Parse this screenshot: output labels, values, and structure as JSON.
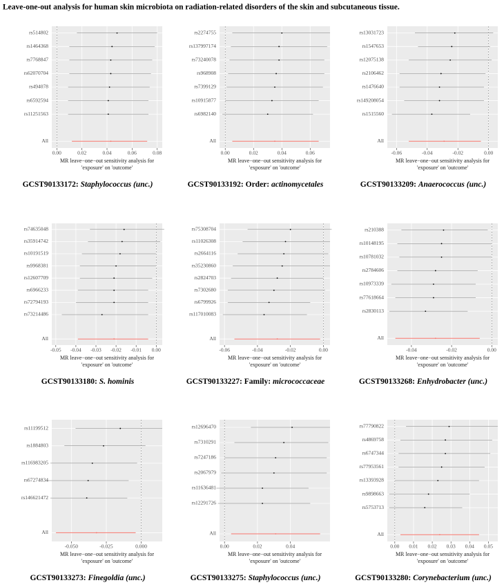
{
  "title": "Leave-one-out analysis for human skin microbiota on radiation-related disorders of the skin and subcutaneous tissue.",
  "chart_data": [
    {
      "type": "forest",
      "caption_id": "GCST90133172: ",
      "caption_taxon": "Staphylococcus (unc.)",
      "xlabel": [
        "MR leave−one−out sensitivity analysis for",
        "'exposure' on 'outcome'"
      ],
      "categories": [
        "rs514802",
        "rs1464368",
        "rs7768847",
        "rs62070704",
        "rs494078",
        "rs6592594",
        "rs11251563",
        "All"
      ],
      "values": [
        0.048,
        0.044,
        0.043,
        0.043,
        0.042,
        0.041,
        0.041,
        0.043
      ],
      "lower": [
        0.016,
        0.01,
        0.01,
        0.01,
        0.009,
        0.009,
        0.009,
        0.012
      ],
      "upper": [
        0.08,
        0.078,
        0.076,
        0.075,
        0.074,
        0.073,
        0.073,
        0.072
      ],
      "xlim": [
        -0.004,
        0.084
      ],
      "xticks": [
        {
          "value": 0,
          "label": "0.00"
        },
        0.02,
        0.04,
        0.06,
        0.08
      ],
      "color": "#000000",
      "summary_color": "#f8766d",
      "grid": true
    },
    {
      "type": "forest",
      "caption_id": "GCST90133192: Order: ",
      "caption_taxon": "actinomycetales",
      "xlabel": [
        "MR leave−one−out sensitivity analysis for",
        "'exposure' on 'outcome'"
      ],
      "categories": [
        "rs2274755",
        "rs137997174",
        "rs73240078",
        "rs968908",
        "rs7399129",
        "rs10915877",
        "rs6982140",
        "All"
      ],
      "values": [
        0.04,
        0.038,
        0.038,
        0.036,
        0.035,
        0.033,
        0.03,
        0.035
      ],
      "lower": [
        0.005,
        0.004,
        0.003,
        0.002,
        0.001,
        0.0,
        -0.002,
        0.005
      ],
      "upper": [
        0.074,
        0.072,
        0.07,
        0.07,
        0.069,
        0.066,
        0.062,
        0.066
      ],
      "xlim": [
        -0.004,
        0.074
      ],
      "xticks": [
        {
          "value": 0,
          "label": "0.00"
        },
        0.02,
        0.04,
        0.06
      ],
      "color": "#000000",
      "summary_color": "#f8766d",
      "grid": true
    },
    {
      "type": "forest",
      "caption_id": "GCST90133209: ",
      "caption_taxon": "Anaerococcus (unc.)",
      "xlabel": [
        "MR leave−one−out sensitivity analysis for",
        "'exposure' on 'outcome'"
      ],
      "categories": [
        "rs13031723",
        "rs1547653",
        "rs12075138",
        "rs2106462",
        "rs1476640",
        "rs149208054",
        "rs1515560",
        "All"
      ],
      "values": [
        -0.022,
        -0.024,
        -0.025,
        -0.031,
        -0.032,
        -0.032,
        -0.037,
        -0.029
      ],
      "lower": [
        -0.048,
        -0.046,
        -0.052,
        -0.058,
        -0.058,
        -0.055,
        -0.063,
        -0.052
      ],
      "upper": [
        0.003,
        0.001,
        0.002,
        -0.002,
        -0.003,
        -0.003,
        -0.012,
        -0.005
      ],
      "xlim": [
        -0.066,
        0.006
      ],
      "xticks": [
        -0.06,
        -0.04,
        -0.02,
        {
          "value": 0,
          "label": "0.00"
        }
      ],
      "color": "#000000",
      "summary_color": "#f8766d",
      "grid": true
    },
    {
      "type": "forest",
      "caption_id": "GCST90133180: ",
      "caption_taxon": "S. hominis",
      "xlabel": [
        "MR leave−one−out sensitivity analysis for",
        "'exposure' on 'outcome'"
      ],
      "categories": [
        "rs74635048",
        "rs35914742",
        "rs10191519",
        "rs9968381",
        "rs12607709",
        "rs6966233",
        "rs72794193",
        "rs73214486",
        "All"
      ],
      "values": [
        -0.016,
        -0.017,
        -0.018,
        -0.02,
        -0.021,
        -0.021,
        -0.021,
        -0.027,
        -0.021
      ],
      "lower": [
        -0.033,
        -0.034,
        -0.037,
        -0.038,
        -0.038,
        -0.039,
        -0.04,
        -0.047,
        -0.039
      ],
      "upper": [
        0.004,
        0.002,
        0.0,
        0.0,
        -0.002,
        -0.004,
        -0.004,
        -0.004,
        -0.004
      ],
      "xlim": [
        -0.052,
        0.003
      ],
      "xticks": [
        -0.05,
        -0.04,
        -0.03,
        -0.02,
        -0.01,
        {
          "value": 0,
          "label": "0.00"
        }
      ],
      "color": "#000000",
      "summary_color": "#f8766d",
      "grid": true
    },
    {
      "type": "forest",
      "caption_id": "GCST90133227: Family: ",
      "caption_taxon": "micrococcaceae",
      "xlabel": [
        "MR leave−one−out sensitivity analysis for",
        "'exposure' on 'outcome'"
      ],
      "categories": [
        "rs75308704",
        "rs11026308",
        "rs2664116",
        "rs35230860",
        "rs2824703",
        "rs7302680",
        "rs6799926",
        "rs117010083",
        "All"
      ],
      "values": [
        -0.02,
        -0.023,
        -0.024,
        -0.025,
        -0.028,
        -0.03,
        -0.033,
        -0.036,
        -0.028
      ],
      "lower": [
        -0.046,
        -0.049,
        -0.052,
        -0.055,
        -0.056,
        -0.058,
        -0.058,
        -0.061,
        -0.054
      ],
      "upper": [
        0.005,
        0.004,
        0.003,
        0.004,
        0.0,
        0.001,
        -0.008,
        -0.01,
        -0.002
      ],
      "xlim": [
        -0.063,
        0.004
      ],
      "xticks": [
        -0.06,
        -0.04,
        -0.02,
        {
          "value": 0,
          "label": "0.00"
        }
      ],
      "color": "#000000",
      "summary_color": "#f8766d",
      "grid": true
    },
    {
      "type": "forest",
      "caption_id": "GCST90133268: ",
      "caption_taxon": "Enhydrobacter (unc.)",
      "xlabel": [
        "MR leave−one−out sensitivity analysis for",
        "'exposure' on 'outcome'"
      ],
      "categories": [
        "rs210388",
        "rs10148195",
        "rs10781032",
        "rs2784606",
        "rs10973339",
        "rs77618664",
        "rs2830113",
        "All"
      ],
      "values": [
        -0.024,
        -0.025,
        -0.025,
        -0.028,
        -0.029,
        -0.029,
        -0.033,
        -0.028
      ],
      "lower": [
        -0.045,
        -0.047,
        -0.046,
        -0.047,
        -0.05,
        -0.048,
        -0.051,
        -0.048
      ],
      "upper": [
        -0.002,
        0.0,
        0.0,
        -0.007,
        -0.008,
        -0.008,
        -0.012,
        -0.006
      ],
      "xlim": [
        -0.052,
        0.003
      ],
      "xticks": [
        -0.04,
        -0.02,
        {
          "value": 0,
          "label": "0.00"
        }
      ],
      "color": "#000000",
      "summary_color": "#f8766d",
      "grid": true
    },
    {
      "type": "forest",
      "caption_id": "GCST90133273: ",
      "caption_taxon": "Finegoldia (unc.)",
      "xlabel": [
        "MR leave−one−out sensitivity analysis for",
        "'exposure' on 'outcome'"
      ],
      "categories": [
        "rs11199512",
        "rs1884803",
        "rs116983205",
        "rs67274834",
        "rs146621472",
        "All"
      ],
      "values": [
        -0.015,
        -0.027,
        -0.035,
        -0.038,
        -0.039,
        -0.032
      ],
      "lower": [
        -0.047,
        -0.055,
        -0.065,
        -0.068,
        -0.065,
        -0.061
      ],
      "upper": [
        0.015,
        0.003,
        -0.003,
        -0.009,
        -0.01,
        -0.004
      ],
      "xlim": [
        -0.064,
        0.015
      ],
      "xticks": [
        {
          "value": -0.05,
          "label": "-0.050"
        },
        {
          "value": -0.025,
          "label": "-0.025"
        },
        {
          "value": 0,
          "label": "0.000"
        }
      ],
      "color": "#000000",
      "summary_color": "#f8766d",
      "grid": true
    },
    {
      "type": "forest",
      "caption_id": "GCST90133275: ",
      "caption_taxon": "Staphylococcus (unc.)",
      "xlabel": [
        "MR leave−one−out sensitivity analysis for",
        "'exposure' on 'outcome'"
      ],
      "categories": [
        "rs12696470",
        "rs7310291",
        "rs7247186",
        "rs2067979",
        "rs11636481",
        "rs12291726",
        "All"
      ],
      "values": [
        0.041,
        0.036,
        0.031,
        0.03,
        0.023,
        0.023,
        0.031
      ],
      "lower": [
        0.016,
        0.006,
        0.0,
        -0.002,
        -0.005,
        -0.004,
        0.004
      ],
      "upper": [
        0.064,
        0.063,
        0.062,
        0.062,
        0.051,
        0.052,
        0.058
      ],
      "xlim": [
        -0.003,
        0.064
      ],
      "xticks": [
        {
          "value": 0,
          "label": "0.00"
        },
        0.02,
        0.04
      ],
      "color": "#000000",
      "summary_color": "#f8766d",
      "grid": true
    },
    {
      "type": "forest",
      "caption_id": "GCST90133280: ",
      "caption_taxon": "Corynebacterium (unc.)",
      "xlabel": [
        "MR leave−one−out sensitivity analysis for",
        "'exposure' on 'outcome'"
      ],
      "categories": [
        "rs77790822",
        "rs4869758",
        "rs6747344",
        "rs77953561",
        "rs13393928",
        "rs9898663",
        "rs5753713",
        "All"
      ],
      "values": [
        0.029,
        0.027,
        0.027,
        0.025,
        0.023,
        0.018,
        0.016,
        0.024
      ],
      "lower": [
        0.006,
        0.003,
        0.002,
        0.002,
        0.0,
        -0.003,
        -0.003,
        0.003
      ],
      "upper": [
        0.055,
        0.052,
        0.051,
        0.048,
        0.045,
        0.04,
        0.036,
        0.045
      ],
      "xlim": [
        -0.004,
        0.055
      ],
      "xticks": [
        {
          "value": 0,
          "label": "0.00"
        },
        0.01,
        0.02,
        0.03,
        0.04,
        0.05
      ],
      "color": "#000000",
      "summary_color": "#f8766d",
      "grid": true
    }
  ]
}
